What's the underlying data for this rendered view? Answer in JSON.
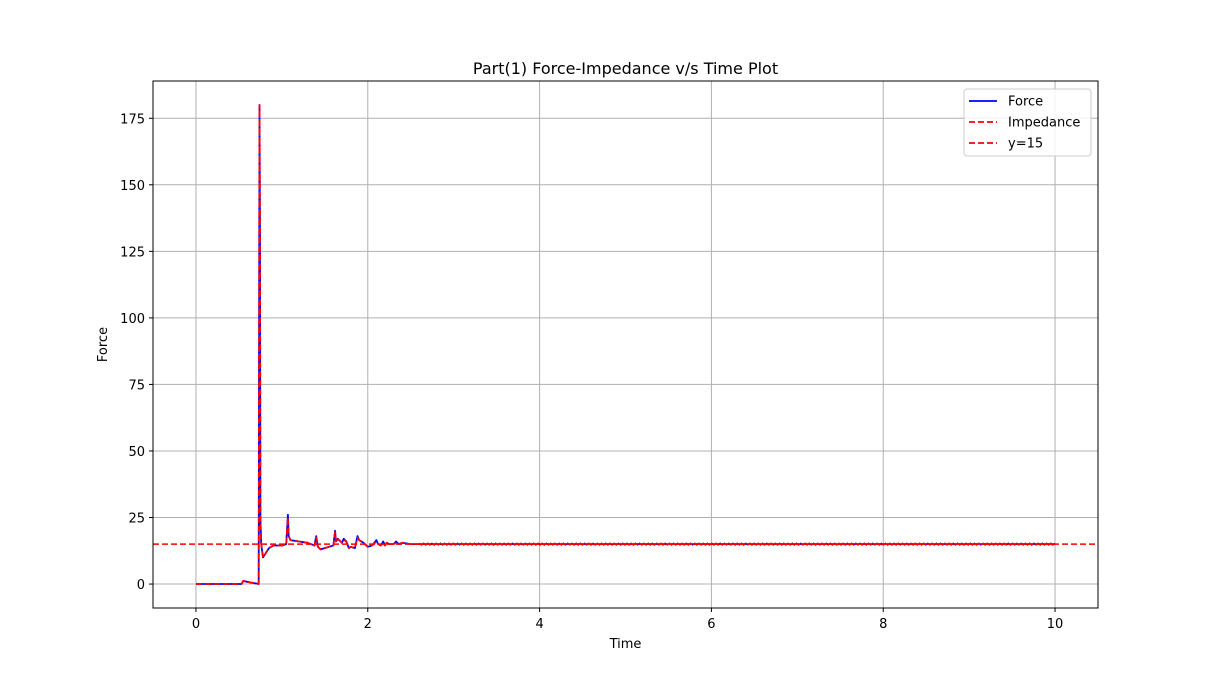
{
  "chart_data": {
    "type": "line",
    "title": "Part(1) Force-Impedance v/s Time Plot",
    "xlabel": "Time",
    "ylabel": "Force",
    "xlim": [
      -0.5,
      10.5
    ],
    "ylim": [
      -9,
      189
    ],
    "xticks": [
      0,
      2,
      4,
      6,
      8,
      10
    ],
    "yticks": [
      0,
      25,
      50,
      75,
      100,
      125,
      150,
      175
    ],
    "grid": true,
    "legend_position": "top-right",
    "series": [
      {
        "name": "Force",
        "color": "#0000ff",
        "style": "solid",
        "x": [
          0,
          0.53,
          0.55,
          0.6,
          0.7,
          0.73,
          0.74,
          0.745,
          0.75,
          0.76,
          0.78,
          0.8,
          0.85,
          0.9,
          1.0,
          1.05,
          1.07,
          1.08,
          1.1,
          1.2,
          1.3,
          1.38,
          1.4,
          1.42,
          1.45,
          1.5,
          1.55,
          1.6,
          1.62,
          1.63,
          1.65,
          1.7,
          1.72,
          1.75,
          1.78,
          1.8,
          1.85,
          1.88,
          1.9,
          1.95,
          2.0,
          2.05,
          2.1,
          2.12,
          2.15,
          2.18,
          2.2,
          2.22,
          2.25,
          2.3,
          2.33,
          2.36,
          2.4,
          2.5,
          2.6,
          3,
          4,
          5,
          6,
          7,
          8,
          9,
          10
        ],
        "y": [
          0,
          0,
          1.2,
          0.8,
          0.2,
          0,
          180,
          130,
          25,
          15,
          10,
          11,
          13.5,
          14.5,
          14.5,
          15,
          26,
          18,
          16.5,
          16,
          15.5,
          14.5,
          18,
          14,
          13,
          13.5,
          14,
          14.5,
          20,
          16,
          17,
          15.5,
          17,
          16,
          13.5,
          14,
          13.5,
          18,
          16.5,
          15.5,
          14,
          14.5,
          16.5,
          15,
          14.5,
          16,
          14.5,
          15.5,
          15,
          15,
          16,
          15,
          15.5,
          15,
          15,
          15,
          15,
          15,
          15,
          15,
          15,
          15,
          15
        ]
      },
      {
        "name": "Impedance",
        "color": "#ff0000",
        "style": "dashed",
        "x": [
          0,
          0.53,
          0.55,
          0.6,
          0.7,
          0.73,
          0.74,
          0.745,
          0.75,
          0.76,
          0.78,
          0.8,
          0.85,
          0.9,
          1.0,
          1.05,
          1.07,
          1.08,
          1.1,
          1.2,
          1.3,
          1.38,
          1.4,
          1.42,
          1.45,
          1.5,
          1.55,
          1.6,
          1.62,
          1.63,
          1.65,
          1.7,
          1.72,
          1.75,
          1.78,
          1.8,
          1.85,
          1.88,
          1.9,
          1.95,
          2.0,
          2.05,
          2.1,
          2.12,
          2.15,
          2.18,
          2.2,
          2.22,
          2.25,
          2.3,
          2.33,
          2.36,
          2.4,
          2.5,
          2.6,
          3,
          4,
          5,
          6,
          7,
          8,
          9,
          10
        ],
        "y": [
          0,
          0,
          1.2,
          0.8,
          0.2,
          0,
          180,
          130,
          25,
          15,
          10,
          11,
          13.5,
          14.5,
          14.5,
          15,
          25,
          18,
          16.5,
          16,
          15.5,
          14.5,
          17.5,
          14,
          13,
          13.5,
          14,
          14.5,
          19.5,
          16,
          17,
          15.5,
          16.5,
          16,
          13.5,
          14,
          13.5,
          17.5,
          16.5,
          15.5,
          14,
          14.5,
          16,
          15,
          14.5,
          15.5,
          14.5,
          15.5,
          15,
          15,
          15.5,
          15,
          15.5,
          15,
          15,
          15,
          15,
          15,
          15,
          15,
          15,
          15,
          15
        ]
      },
      {
        "name": "y=15",
        "color": "#ff0000",
        "style": "dashed",
        "hline": 15
      }
    ]
  }
}
